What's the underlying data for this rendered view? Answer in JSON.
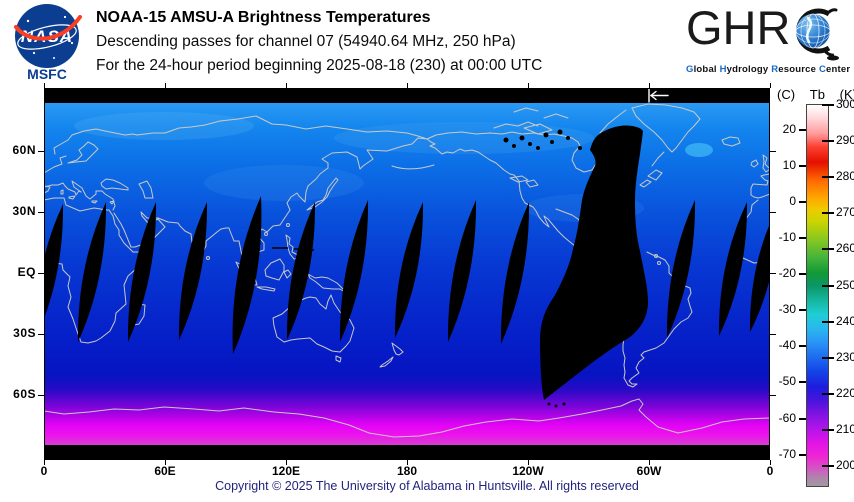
{
  "brand": {
    "nasa_wordmark": "NASA",
    "msfc_label": "MSFC",
    "ghrc_letters": "GHR",
    "ghrc_tagline": [
      {
        "initial": "G",
        "rest": "lobal"
      },
      {
        "initial": "H",
        "rest": "ydrology"
      },
      {
        "initial": "R",
        "rest": "esource"
      },
      {
        "initial": "C",
        "rest": "enter"
      }
    ]
  },
  "header": {
    "title": "NOAA-15 AMSU-A Brightness Temperatures",
    "subtitle1": "Descending passes for channel 07 (54940.64 MHz, 250 hPa)",
    "subtitle2": "For the 24-hour period beginning 2025-08-18 (230) at 00:00 UTC"
  },
  "map": {
    "lat_tick_labels": [
      "60N",
      "30N",
      "EQ",
      "30S",
      "60S"
    ],
    "lon_tick_labels": [
      "0",
      "60E",
      "120E",
      "180",
      "120W",
      "60W",
      "0"
    ]
  },
  "colorbar": {
    "unit_left": "(C)",
    "unit_mid": "Tb",
    "unit_right": "(K)",
    "celsius_ticks": [
      20,
      10,
      0,
      -10,
      -20,
      -30,
      -40,
      -50,
      -60,
      -70
    ],
    "kelvin_ticks": [
      300,
      290,
      280,
      270,
      260,
      250,
      240,
      230,
      220,
      210,
      200
    ]
  },
  "footer": {
    "copyright": "Copyright © 2025 The University of Alabama in Huntsville.  All rights reserved"
  },
  "colors": {
    "nasa_blue": "#0b3d91",
    "nasa_red": "#fc3d21",
    "ghrc_blue": "#1669c9",
    "coastline_gray": "#c9c9c9",
    "copyright_navy": "#23237d",
    "missing_data_black": "#000000"
  },
  "chart_data": {
    "type": "heatmap",
    "title": "NOAA-15 AMSU-A Brightness Temperatures, descending passes, channel 07 (54940.64 MHz, 250 hPa), 24-hour period beginning 2025-08-18 (230) at 00:00 UTC",
    "projection": "equirectangular",
    "x_axis": {
      "label": "longitude",
      "tick_labels": [
        "0",
        "60E",
        "120E",
        "180",
        "120W",
        "60W",
        "0"
      ],
      "range_deg_east": [
        0,
        360
      ]
    },
    "y_axis": {
      "label": "latitude",
      "tick_labels": [
        "60N",
        "30N",
        "EQ",
        "30S",
        "60S"
      ]
    },
    "colorbar": {
      "quantity": "Tb",
      "units": [
        "C",
        "K"
      ],
      "kelvin_tick_labels": [
        300,
        290,
        280,
        270,
        260,
        250,
        240,
        230,
        220,
        210,
        200
      ],
      "celsius_tick_labels": [
        20,
        10,
        0,
        -10,
        -20,
        -30,
        -40,
        -50,
        -60,
        -70
      ],
      "kelvin_range_shown": [
        194,
        300
      ]
    },
    "field_summary": [
      "approx 230-245 K (bright blue) over northern high latitudes",
      "approx 218-228 K (deep blue) across tropics and midlatitudes",
      "approx 200-212 K (magenta/purple) over Antarctica and far southern ocean",
      "thin black lens-shaped gaps between adjacent descending swaths straddling the equator roughly every 25 degrees of longitude",
      "one large black missing-swath region from eastern Canada through the Caribbean and South America to about 60S",
      "black no-data bars along the extreme northern and southern map edges"
    ],
    "legend_position": "right",
    "grid": false
  }
}
